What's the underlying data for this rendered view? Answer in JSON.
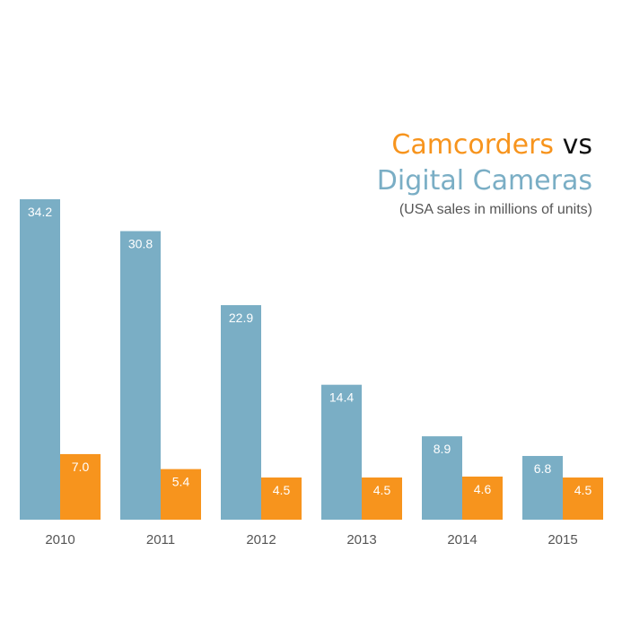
{
  "title": {
    "camcorders": "Camcorders",
    "vs": "vs",
    "digital_cameras": "Digital Cameras"
  },
  "subtitle": "(USA sales in millions of units)",
  "colors": {
    "digital_cameras": "#7aaec5",
    "camcorders": "#f7941d"
  },
  "chart_data": {
    "type": "bar",
    "title": "Camcorders vs Digital Cameras",
    "subtitle": "(USA sales in millions of units)",
    "categories": [
      "2010",
      "2011",
      "2012",
      "2013",
      "2014",
      "2015"
    ],
    "series": [
      {
        "name": "Digital Cameras",
        "color": "#7aaec5",
        "values": [
          34.2,
          30.8,
          22.9,
          14.4,
          8.9,
          6.8
        ],
        "labels": [
          "34.2",
          "30.8",
          "22.9",
          "14.4",
          "8.9",
          "6.8"
        ]
      },
      {
        "name": "Camcorders",
        "color": "#f7941d",
        "values": [
          7.0,
          5.4,
          4.5,
          4.5,
          4.6,
          4.5
        ],
        "labels": [
          "7.0",
          "5.4",
          "4.5",
          "4.5",
          "4.6",
          "4.5"
        ]
      }
    ],
    "ylim": [
      0,
      34.2
    ],
    "grid": false,
    "legend": "none"
  }
}
